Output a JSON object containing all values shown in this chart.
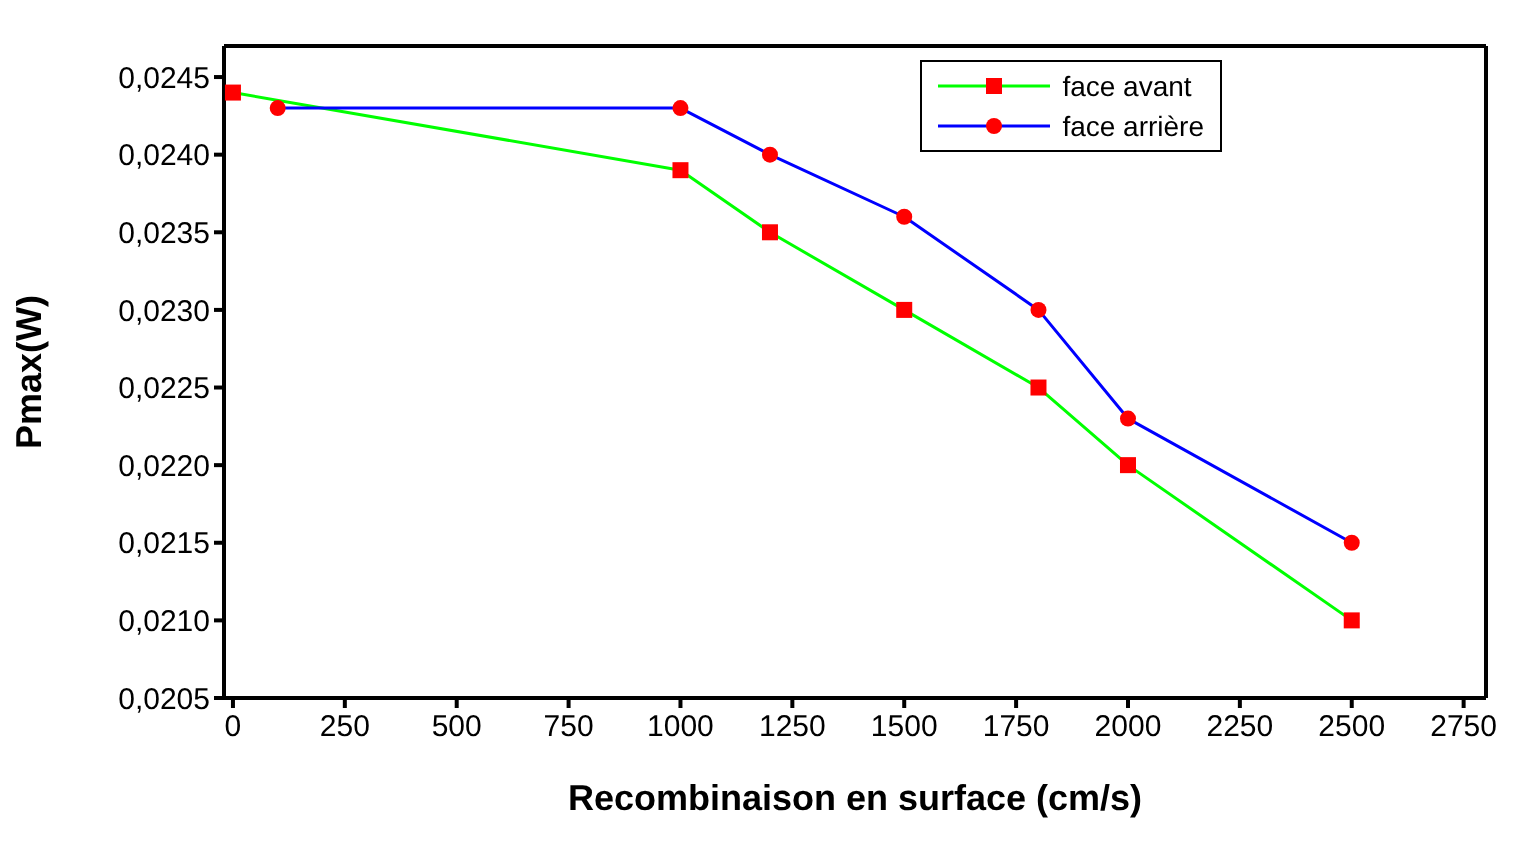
{
  "chart_data": {
    "type": "line",
    "xlabel": "Recombinaison en surface (cm/s)",
    "ylabel": "Pmax(W)",
    "series": [
      {
        "name": "face avant",
        "color": "#00ff00",
        "marker": "square",
        "colors": [
          "#ff0000",
          "#ff0000",
          "#ff0000",
          "#ff0000",
          "#ff0000",
          "#ff0000",
          "#ff0000"
        ],
        "x": [
          0,
          1000,
          1200,
          1500,
          1800,
          2000,
          2500
        ],
        "values": [
          0.0244,
          0.0239,
          0.0235,
          0.023,
          0.0225,
          0.022,
          0.021
        ]
      },
      {
        "name": "face arrière",
        "color": "#0000ff",
        "marker": "circle",
        "colors": [
          "#ff0000",
          "#ff0000",
          "#ff0000",
          "#ff0000",
          "#ff0000",
          "#ff0000",
          "#ff0000"
        ],
        "x": [
          100,
          1000,
          1200,
          1500,
          1800,
          2000,
          2500
        ],
        "values": [
          0.0243,
          0.0243,
          0.024,
          0.0236,
          0.023,
          0.0223,
          0.0215
        ]
      }
    ],
    "xlim": [
      -20,
      2800
    ],
    "xticks": [
      0,
      250,
      500,
      750,
      1000,
      1250,
      1500,
      1750,
      2000,
      2250,
      2500,
      2750
    ],
    "ylim": [
      0.0205,
      0.0247
    ],
    "yticks": [
      {
        "value": 0.0205,
        "label": "0,0205"
      },
      {
        "value": 0.021,
        "label": "0,0210"
      },
      {
        "value": 0.0215,
        "label": "0,0215"
      },
      {
        "value": 0.022,
        "label": "0,0220"
      },
      {
        "value": 0.0225,
        "label": "0,0225"
      },
      {
        "value": 0.023,
        "label": "0,0230"
      },
      {
        "value": 0.0235,
        "label": "0,0235"
      },
      {
        "value": 0.024,
        "label": "0,0240"
      },
      {
        "value": 0.0245,
        "label": "0,0245"
      }
    ],
    "legend": "top right",
    "line_style": "solid"
  }
}
